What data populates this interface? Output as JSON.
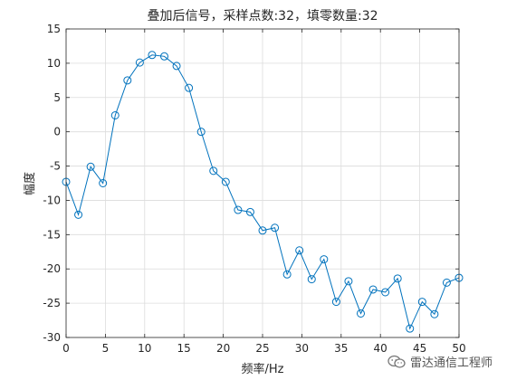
{
  "chart_data": {
    "type": "line",
    "title": "叠加后信号，采样点数:32，填零数量:32",
    "xlabel": "频率/Hz",
    "ylabel": "幅度",
    "xlim": [
      0,
      50
    ],
    "ylim": [
      -30,
      15
    ],
    "xticks": [
      0,
      5,
      10,
      15,
      20,
      25,
      30,
      35,
      40,
      45,
      50
    ],
    "yticks": [
      -30,
      -25,
      -20,
      -15,
      -10,
      -5,
      0,
      5,
      10,
      15
    ],
    "grid": true,
    "marker": "circle",
    "line_color": "#0072BD",
    "series": [
      {
        "x": [
          0,
          1.5625,
          3.125,
          4.6875,
          6.25,
          7.8125,
          9.375,
          10.9375,
          12.5,
          14.0625,
          15.625,
          17.1875,
          18.75,
          20.3125,
          21.875,
          23.4375,
          25,
          26.5625,
          28.125,
          29.6875,
          31.25,
          32.8125,
          34.375,
          35.9375,
          37.5,
          39.0625,
          40.625,
          42.1875,
          43.75,
          45.3125,
          46.875,
          48.4375,
          50
        ],
        "y": [
          -7.3,
          -12.1,
          -5.1,
          -7.5,
          2.4,
          7.5,
          10.1,
          11.2,
          11.0,
          9.6,
          6.4,
          0.0,
          -5.7,
          -7.3,
          -11.4,
          -11.7,
          -14.4,
          -14.0,
          -20.8,
          -17.3,
          -21.5,
          -18.6,
          -24.8,
          -21.8,
          -26.5,
          -23.0,
          -23.4,
          -21.4,
          -28.7,
          -24.8,
          -26.6,
          -22.0,
          -21.3
        ]
      }
    ]
  },
  "watermark": {
    "text": "雷达通信工程师",
    "icon": "wechat-icon"
  }
}
